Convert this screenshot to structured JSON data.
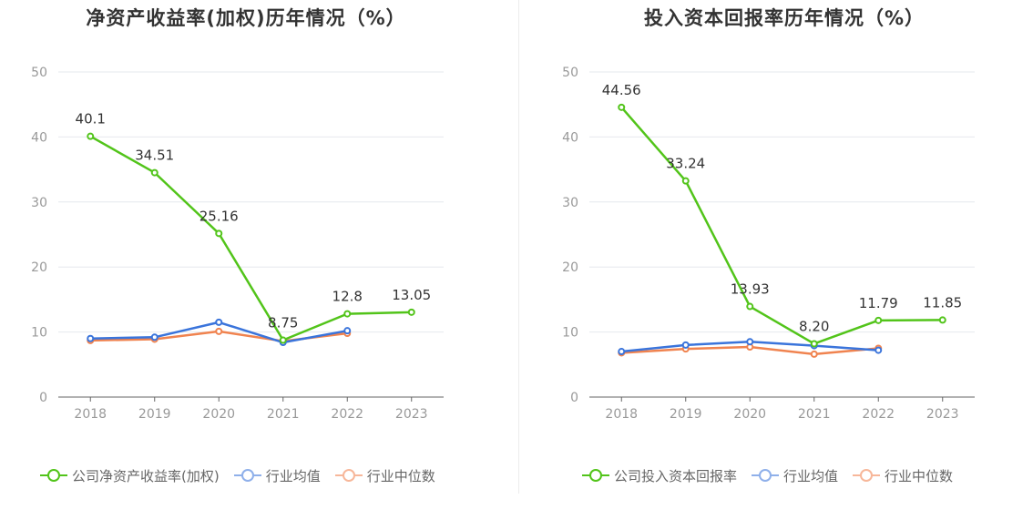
{
  "charts": [
    {
      "title": "净资产收益率(加权)历年情况（%）",
      "legend": [
        "公司净资产收益率(加权)",
        "行业均值",
        "行业中位数"
      ]
    },
    {
      "title": "投入资本回报率历年情况（%）",
      "legend": [
        "公司投入资本回报率",
        "行业均值",
        "行业中位数"
      ]
    }
  ],
  "chart_data": [
    {
      "type": "line",
      "title": "净资产收益率(加权)历年情况（%）",
      "categories": [
        "2018",
        "2019",
        "2020",
        "2021",
        "2022",
        "2023"
      ],
      "ylim": [
        0,
        50
      ],
      "yticks": [
        0,
        10,
        20,
        30,
        40,
        50
      ],
      "grid": true,
      "legend_position": "bottom",
      "series": [
        {
          "name": "公司净资产收益率(加权)",
          "color": "#52c41a",
          "values": [
            40.1,
            34.51,
            25.16,
            8.75,
            12.8,
            13.05
          ],
          "labels": [
            "40.1",
            "34.51",
            "25.16",
            "8.75",
            "12.8",
            "13.05"
          ]
        },
        {
          "name": "行业均值",
          "color": "#3a74db",
          "values": [
            9.0,
            9.2,
            11.5,
            8.4,
            10.2,
            null
          ]
        },
        {
          "name": "行业中位数",
          "color": "#f0834f",
          "values": [
            8.7,
            8.9,
            10.1,
            8.6,
            9.8,
            null
          ]
        }
      ]
    },
    {
      "type": "line",
      "title": "投入资本回报率历年情况（%）",
      "categories": [
        "2018",
        "2019",
        "2020",
        "2021",
        "2022",
        "2023"
      ],
      "ylim": [
        0,
        50
      ],
      "yticks": [
        0,
        10,
        20,
        30,
        40,
        50
      ],
      "grid": true,
      "legend_position": "bottom",
      "series": [
        {
          "name": "公司投入资本回报率",
          "color": "#52c41a",
          "values": [
            44.56,
            33.24,
            13.93,
            8.2,
            11.79,
            11.85
          ],
          "labels": [
            "44.56",
            "33.24",
            "13.93",
            "8.20",
            "11.79",
            "11.85"
          ]
        },
        {
          "name": "行业均值",
          "color": "#3a74db",
          "values": [
            7.0,
            8.0,
            8.5,
            7.9,
            7.2,
            null
          ]
        },
        {
          "name": "行业中位数",
          "color": "#f0834f",
          "values": [
            6.8,
            7.4,
            7.7,
            6.6,
            7.5,
            null
          ]
        }
      ]
    }
  ]
}
